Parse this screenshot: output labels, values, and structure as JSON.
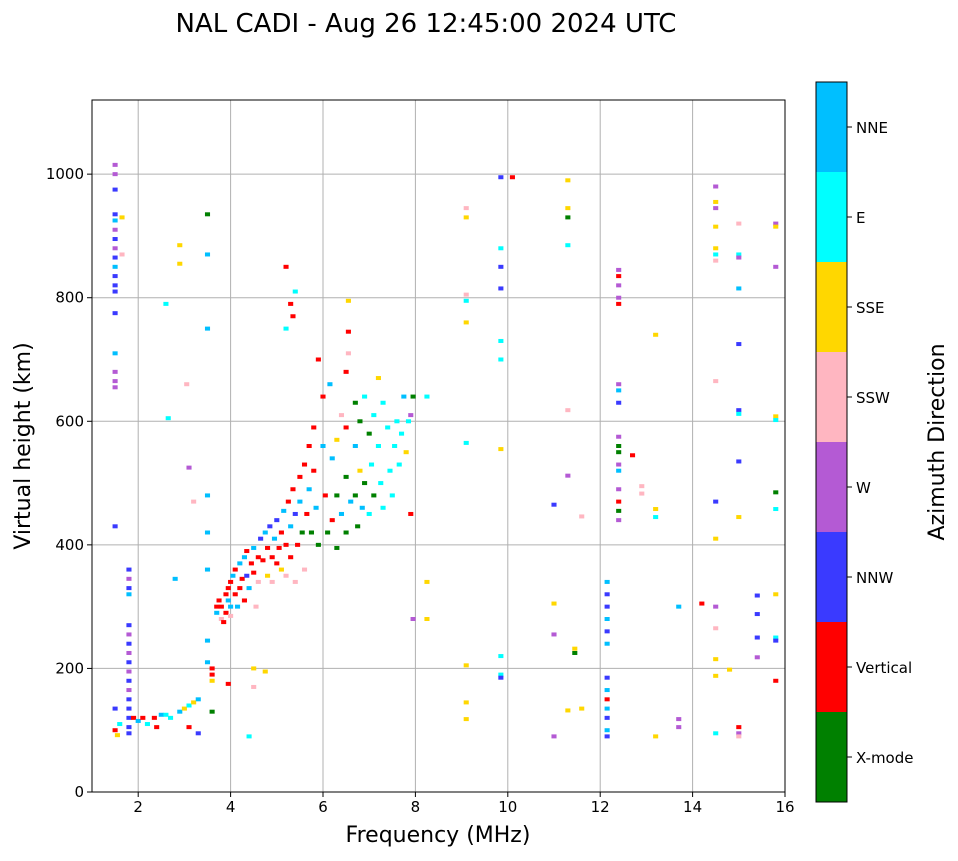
{
  "chart_data": {
    "type": "scatter",
    "title": "NAL CADI - Aug 26 12:45:00 2024 UTC",
    "xlabel": "Frequency (MHz)",
    "ylabel": "Virtual height (km)",
    "xlim": [
      1,
      16
    ],
    "ylim": [
      0,
      1120
    ],
    "xticks": [
      2,
      4,
      6,
      8,
      10,
      12,
      14,
      16
    ],
    "yticks": [
      0,
      200,
      400,
      600,
      800,
      1000
    ],
    "grid": true,
    "colorbar": {
      "label": "Azimuth Direction",
      "categories": [
        "X-mode",
        "Vertical",
        "NNW",
        "W",
        "SSW",
        "SSE",
        "E",
        "NNE"
      ],
      "colors": [
        "#008000",
        "#ff0000",
        "#3a3aff",
        "#b45ad4",
        "#ffb6c1",
        "#ffd700",
        "#00ffff",
        "#00bfff"
      ]
    },
    "point_format": [
      "frequency_mhz",
      "height_km",
      "category_index"
    ],
    "points": [
      [
        1.5,
        1015,
        3
      ],
      [
        1.5,
        1000,
        3
      ],
      [
        1.5,
        975,
        2
      ],
      [
        1.5,
        935,
        2
      ],
      [
        1.5,
        925,
        7
      ],
      [
        1.5,
        910,
        3
      ],
      [
        1.5,
        895,
        2
      ],
      [
        1.5,
        880,
        3
      ],
      [
        1.5,
        865,
        2
      ],
      [
        1.5,
        850,
        7
      ],
      [
        1.5,
        835,
        2
      ],
      [
        1.5,
        820,
        2
      ],
      [
        1.5,
        810,
        2
      ],
      [
        1.5,
        775,
        2
      ],
      [
        1.5,
        710,
        7
      ],
      [
        1.5,
        680,
        3
      ],
      [
        1.5,
        665,
        3
      ],
      [
        1.5,
        655,
        3
      ],
      [
        1.5,
        430,
        2
      ],
      [
        1.5,
        135,
        2
      ],
      [
        1.5,
        100,
        1
      ],
      [
        1.55,
        92,
        5
      ],
      [
        1.6,
        110,
        6
      ],
      [
        1.65,
        930,
        5
      ],
      [
        1.65,
        870,
        4
      ],
      [
        1.8,
        360,
        2
      ],
      [
        1.8,
        345,
        3
      ],
      [
        1.8,
        330,
        2
      ],
      [
        1.8,
        320,
        7
      ],
      [
        1.8,
        270,
        2
      ],
      [
        1.8,
        255,
        3
      ],
      [
        1.8,
        240,
        2
      ],
      [
        1.8,
        225,
        3
      ],
      [
        1.8,
        210,
        2
      ],
      [
        1.8,
        195,
        3
      ],
      [
        1.8,
        180,
        2
      ],
      [
        1.8,
        165,
        3
      ],
      [
        1.8,
        150,
        2
      ],
      [
        1.8,
        135,
        2
      ],
      [
        1.8,
        120,
        2
      ],
      [
        1.8,
        105,
        2
      ],
      [
        1.8,
        95,
        2
      ],
      [
        1.9,
        120,
        1
      ],
      [
        2.0,
        115,
        7
      ],
      [
        2.1,
        120,
        1
      ],
      [
        2.2,
        110,
        6
      ],
      [
        2.35,
        120,
        1
      ],
      [
        2.4,
        105,
        1
      ],
      [
        2.5,
        125,
        7
      ],
      [
        2.6,
        125,
        6
      ],
      [
        2.7,
        120,
        6
      ],
      [
        2.9,
        130,
        7
      ],
      [
        3.0,
        135,
        5
      ],
      [
        3.1,
        140,
        6
      ],
      [
        3.2,
        145,
        5
      ],
      [
        3.3,
        150,
        7
      ],
      [
        3.1,
        105,
        1
      ],
      [
        3.3,
        95,
        2
      ],
      [
        2.6,
        790,
        6
      ],
      [
        2.65,
        605,
        6
      ],
      [
        2.8,
        345,
        7
      ],
      [
        2.9,
        885,
        5
      ],
      [
        2.9,
        855,
        5
      ],
      [
        3.05,
        660,
        4
      ],
      [
        3.1,
        525,
        3
      ],
      [
        3.2,
        470,
        4
      ],
      [
        3.5,
        935,
        0
      ],
      [
        3.5,
        870,
        7
      ],
      [
        3.5,
        750,
        7
      ],
      [
        3.5,
        480,
        7
      ],
      [
        3.5,
        420,
        7
      ],
      [
        3.5,
        360,
        7
      ],
      [
        3.5,
        245,
        7
      ],
      [
        3.5,
        210,
        7
      ],
      [
        3.6,
        130,
        0
      ],
      [
        3.6,
        200,
        1
      ],
      [
        3.6,
        190,
        1
      ],
      [
        3.6,
        180,
        5
      ],
      [
        3.7,
        300,
        1
      ],
      [
        3.7,
        290,
        7
      ],
      [
        3.75,
        310,
        1
      ],
      [
        3.8,
        280,
        4
      ],
      [
        3.8,
        300,
        1
      ],
      [
        3.85,
        275,
        1
      ],
      [
        3.9,
        320,
        1
      ],
      [
        3.9,
        290,
        1
      ],
      [
        3.95,
        310,
        7
      ],
      [
        3.95,
        330,
        1
      ],
      [
        4.0,
        340,
        1
      ],
      [
        4.0,
        300,
        7
      ],
      [
        4.0,
        285,
        4
      ],
      [
        4.05,
        350,
        7
      ],
      [
        4.1,
        320,
        1
      ],
      [
        4.1,
        360,
        1
      ],
      [
        4.15,
        300,
        7
      ],
      [
        4.2,
        370,
        7
      ],
      [
        4.2,
        330,
        1
      ],
      [
        4.25,
        345,
        1
      ],
      [
        4.3,
        380,
        7
      ],
      [
        4.3,
        310,
        1
      ],
      [
        4.35,
        390,
        1
      ],
      [
        4.35,
        350,
        2
      ],
      [
        4.4,
        330,
        7
      ],
      [
        4.45,
        370,
        1
      ],
      [
        4.5,
        395,
        7
      ],
      [
        4.5,
        355,
        1
      ],
      [
        4.55,
        300,
        4
      ],
      [
        4.6,
        380,
        1
      ],
      [
        4.6,
        340,
        4
      ],
      [
        4.65,
        410,
        2
      ],
      [
        4.7,
        375,
        1
      ],
      [
        4.75,
        420,
        7
      ],
      [
        4.8,
        395,
        1
      ],
      [
        4.8,
        350,
        5
      ],
      [
        4.85,
        430,
        2
      ],
      [
        4.9,
        380,
        1
      ],
      [
        4.9,
        340,
        4
      ],
      [
        4.95,
        410,
        7
      ],
      [
        5.0,
        440,
        2
      ],
      [
        5.0,
        370,
        1
      ],
      [
        5.05,
        395,
        1
      ],
      [
        5.1,
        420,
        1
      ],
      [
        5.1,
        360,
        5
      ],
      [
        5.15,
        455,
        7
      ],
      [
        5.2,
        400,
        1
      ],
      [
        5.2,
        350,
        4
      ],
      [
        5.25,
        470,
        1
      ],
      [
        5.3,
        430,
        7
      ],
      [
        5.3,
        380,
        1
      ],
      [
        5.35,
        490,
        1
      ],
      [
        5.4,
        450,
        2
      ],
      [
        5.4,
        340,
        4
      ],
      [
        5.45,
        400,
        1
      ],
      [
        5.5,
        510,
        1
      ],
      [
        5.5,
        470,
        7
      ],
      [
        5.55,
        420,
        0
      ],
      [
        5.6,
        530,
        1
      ],
      [
        5.6,
        360,
        4
      ],
      [
        5.65,
        450,
        1
      ],
      [
        5.7,
        560,
        1
      ],
      [
        5.7,
        490,
        7
      ],
      [
        5.75,
        420,
        0
      ],
      [
        5.8,
        590,
        1
      ],
      [
        5.8,
        520,
        1
      ],
      [
        5.85,
        460,
        7
      ],
      [
        5.9,
        400,
        0
      ],
      [
        5.9,
        700,
        1
      ],
      [
        6.0,
        640,
        1
      ],
      [
        6.0,
        560,
        7
      ],
      [
        6.05,
        480,
        1
      ],
      [
        6.1,
        420,
        0
      ],
      [
        6.15,
        660,
        7
      ],
      [
        6.2,
        540,
        7
      ],
      [
        6.2,
        440,
        1
      ],
      [
        6.3,
        570,
        5
      ],
      [
        6.3,
        480,
        0
      ],
      [
        6.3,
        395,
        0
      ],
      [
        6.4,
        610,
        4
      ],
      [
        6.4,
        450,
        7
      ],
      [
        6.5,
        680,
        1
      ],
      [
        6.5,
        590,
        1
      ],
      [
        6.5,
        510,
        0
      ],
      [
        6.5,
        420,
        0
      ],
      [
        6.55,
        795,
        5
      ],
      [
        6.55,
        745,
        1
      ],
      [
        6.55,
        710,
        4
      ],
      [
        6.6,
        470,
        7
      ],
      [
        6.7,
        630,
        0
      ],
      [
        6.7,
        560,
        7
      ],
      [
        6.7,
        480,
        0
      ],
      [
        6.75,
        430,
        0
      ],
      [
        6.8,
        600,
        0
      ],
      [
        6.8,
        520,
        5
      ],
      [
        6.85,
        460,
        7
      ],
      [
        6.9,
        640,
        6
      ],
      [
        6.9,
        500,
        0
      ],
      [
        7.0,
        580,
        0
      ],
      [
        7.0,
        450,
        6
      ],
      [
        7.05,
        530,
        6
      ],
      [
        7.1,
        610,
        6
      ],
      [
        7.1,
        480,
        0
      ],
      [
        7.2,
        670,
        5
      ],
      [
        7.2,
        560,
        6
      ],
      [
        7.25,
        500,
        6
      ],
      [
        7.3,
        630,
        6
      ],
      [
        7.3,
        460,
        6
      ],
      [
        7.4,
        590,
        6
      ],
      [
        7.45,
        520,
        6
      ],
      [
        7.5,
        480,
        6
      ],
      [
        7.55,
        560,
        6
      ],
      [
        7.6,
        600,
        6
      ],
      [
        7.65,
        530,
        6
      ],
      [
        7.7,
        580,
        6
      ],
      [
        7.75,
        640,
        7
      ],
      [
        7.8,
        550,
        5
      ],
      [
        7.85,
        600,
        6
      ],
      [
        7.9,
        450,
        1
      ],
      [
        7.9,
        610,
        3
      ],
      [
        7.95,
        640,
        0
      ],
      [
        7.95,
        280,
        3
      ],
      [
        8.25,
        640,
        6
      ],
      [
        8.25,
        340,
        5
      ],
      [
        8.25,
        280,
        5
      ],
      [
        5.2,
        850,
        1
      ],
      [
        5.3,
        790,
        1
      ],
      [
        5.35,
        770,
        1
      ],
      [
        5.2,
        750,
        6
      ],
      [
        5.4,
        810,
        6
      ],
      [
        4.5,
        200,
        5
      ],
      [
        4.5,
        170,
        4
      ],
      [
        4.4,
        90,
        6
      ],
      [
        3.95,
        175,
        1
      ],
      [
        4.75,
        195,
        5
      ],
      [
        9.1,
        945,
        4
      ],
      [
        9.1,
        930,
        5
      ],
      [
        9.1,
        805,
        4
      ],
      [
        9.1,
        795,
        6
      ],
      [
        9.1,
        760,
        5
      ],
      [
        9.1,
        565,
        6
      ],
      [
        9.1,
        205,
        5
      ],
      [
        9.1,
        145,
        5
      ],
      [
        9.1,
        118,
        5
      ],
      [
        9.85,
        995,
        2
      ],
      [
        9.85,
        880,
        6
      ],
      [
        9.85,
        850,
        2
      ],
      [
        9.85,
        815,
        2
      ],
      [
        9.85,
        730,
        6
      ],
      [
        9.85,
        700,
        6
      ],
      [
        9.85,
        555,
        5
      ],
      [
        9.85,
        220,
        6
      ],
      [
        9.85,
        190,
        6
      ],
      [
        9.85,
        185,
        2
      ],
      [
        10.1,
        995,
        1
      ],
      [
        11.0,
        465,
        2
      ],
      [
        11.0,
        305,
        5
      ],
      [
        11.0,
        255,
        3
      ],
      [
        11.0,
        90,
        3
      ],
      [
        11.3,
        990,
        5
      ],
      [
        11.3,
        945,
        5
      ],
      [
        11.3,
        930,
        0
      ],
      [
        11.3,
        885,
        6
      ],
      [
        11.3,
        618,
        4
      ],
      [
        11.3,
        512,
        3
      ],
      [
        11.3,
        132,
        5
      ],
      [
        11.45,
        232,
        5
      ],
      [
        11.45,
        225,
        0
      ],
      [
        11.6,
        446,
        4
      ],
      [
        11.6,
        135,
        5
      ],
      [
        12.15,
        340,
        7
      ],
      [
        12.15,
        320,
        2
      ],
      [
        12.15,
        300,
        2
      ],
      [
        12.15,
        280,
        7
      ],
      [
        12.15,
        260,
        2
      ],
      [
        12.15,
        240,
        7
      ],
      [
        12.15,
        185,
        2
      ],
      [
        12.15,
        165,
        7
      ],
      [
        12.15,
        150,
        1
      ],
      [
        12.15,
        135,
        7
      ],
      [
        12.15,
        120,
        2
      ],
      [
        12.15,
        100,
        7
      ],
      [
        12.15,
        90,
        2
      ],
      [
        12.4,
        845,
        3
      ],
      [
        12.4,
        835,
        1
      ],
      [
        12.4,
        820,
        3
      ],
      [
        12.4,
        800,
        3
      ],
      [
        12.4,
        790,
        1
      ],
      [
        12.4,
        660,
        3
      ],
      [
        12.4,
        650,
        7
      ],
      [
        12.4,
        630,
        2
      ],
      [
        12.4,
        575,
        3
      ],
      [
        12.4,
        560,
        0
      ],
      [
        12.4,
        550,
        0
      ],
      [
        12.4,
        530,
        3
      ],
      [
        12.4,
        520,
        7
      ],
      [
        12.4,
        490,
        3
      ],
      [
        12.4,
        470,
        1
      ],
      [
        12.4,
        455,
        0
      ],
      [
        12.4,
        440,
        3
      ],
      [
        12.7,
        545,
        1
      ],
      [
        12.9,
        495,
        4
      ],
      [
        12.9,
        483,
        4
      ],
      [
        13.2,
        740,
        5
      ],
      [
        13.2,
        458,
        5
      ],
      [
        13.2,
        445,
        6
      ],
      [
        13.2,
        90,
        5
      ],
      [
        13.7,
        300,
        7
      ],
      [
        13.7,
        118,
        3
      ],
      [
        13.7,
        105,
        3
      ],
      [
        14.2,
        305,
        1
      ],
      [
        14.5,
        980,
        3
      ],
      [
        14.5,
        955,
        5
      ],
      [
        14.5,
        945,
        3
      ],
      [
        14.5,
        915,
        5
      ],
      [
        14.5,
        880,
        5
      ],
      [
        14.5,
        870,
        6
      ],
      [
        14.5,
        860,
        4
      ],
      [
        14.5,
        665,
        4
      ],
      [
        14.5,
        470,
        2
      ],
      [
        14.5,
        410,
        5
      ],
      [
        14.5,
        300,
        3
      ],
      [
        14.5,
        265,
        4
      ],
      [
        14.5,
        215,
        5
      ],
      [
        14.5,
        188,
        5
      ],
      [
        14.5,
        95,
        6
      ],
      [
        14.8,
        198,
        5
      ],
      [
        15.0,
        920,
        4
      ],
      [
        15.0,
        870,
        6
      ],
      [
        15.0,
        865,
        3
      ],
      [
        15.0,
        815,
        7
      ],
      [
        15.0,
        725,
        2
      ],
      [
        15.0,
        618,
        2
      ],
      [
        15.0,
        612,
        6
      ],
      [
        15.0,
        535,
        2
      ],
      [
        15.0,
        445,
        5
      ],
      [
        15.0,
        105,
        1
      ],
      [
        15.0,
        95,
        3
      ],
      [
        15.0,
        90,
        4
      ],
      [
        15.4,
        318,
        2
      ],
      [
        15.4,
        288,
        2
      ],
      [
        15.4,
        250,
        2
      ],
      [
        15.4,
        218,
        3
      ],
      [
        15.8,
        920,
        3
      ],
      [
        15.8,
        915,
        5
      ],
      [
        15.8,
        850,
        3
      ],
      [
        15.8,
        608,
        5
      ],
      [
        15.8,
        602,
        6
      ],
      [
        15.8,
        485,
        0
      ],
      [
        15.8,
        458,
        6
      ],
      [
        15.8,
        320,
        5
      ],
      [
        15.8,
        250,
        6
      ],
      [
        15.8,
        245,
        2
      ],
      [
        15.8,
        180,
        1
      ]
    ]
  }
}
